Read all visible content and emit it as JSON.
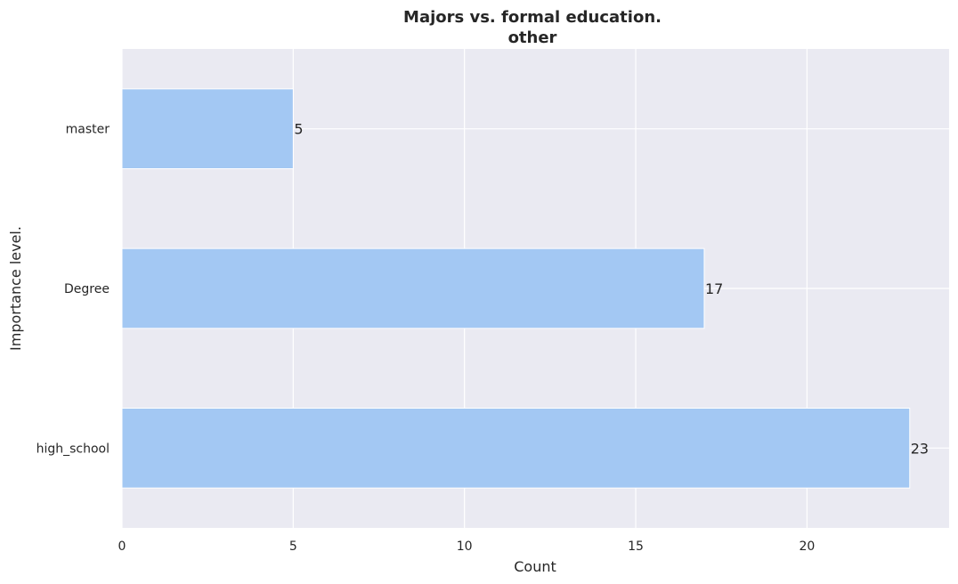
{
  "chart_data": {
    "type": "bar",
    "orientation": "horizontal",
    "title": "Majors vs. formal education.",
    "subtitle": "other",
    "xlabel": "Count",
    "ylabel": "Importance level.",
    "categories": [
      "master",
      "Degree",
      "high_school"
    ],
    "values": [
      5,
      17,
      23
    ],
    "data_labels": [
      "5",
      "17",
      "23"
    ],
    "x_ticks": [
      0,
      5,
      10,
      15,
      20
    ],
    "x_tick_labels": [
      "0",
      "5",
      "10",
      "15",
      "20"
    ],
    "xlim": [
      0,
      24.15
    ],
    "grid": true,
    "legend": "none",
    "colors": {
      "bar": "#a3c8f3",
      "background": "#eaeaf2",
      "grid": "#ffffff",
      "text": "#262626"
    }
  }
}
